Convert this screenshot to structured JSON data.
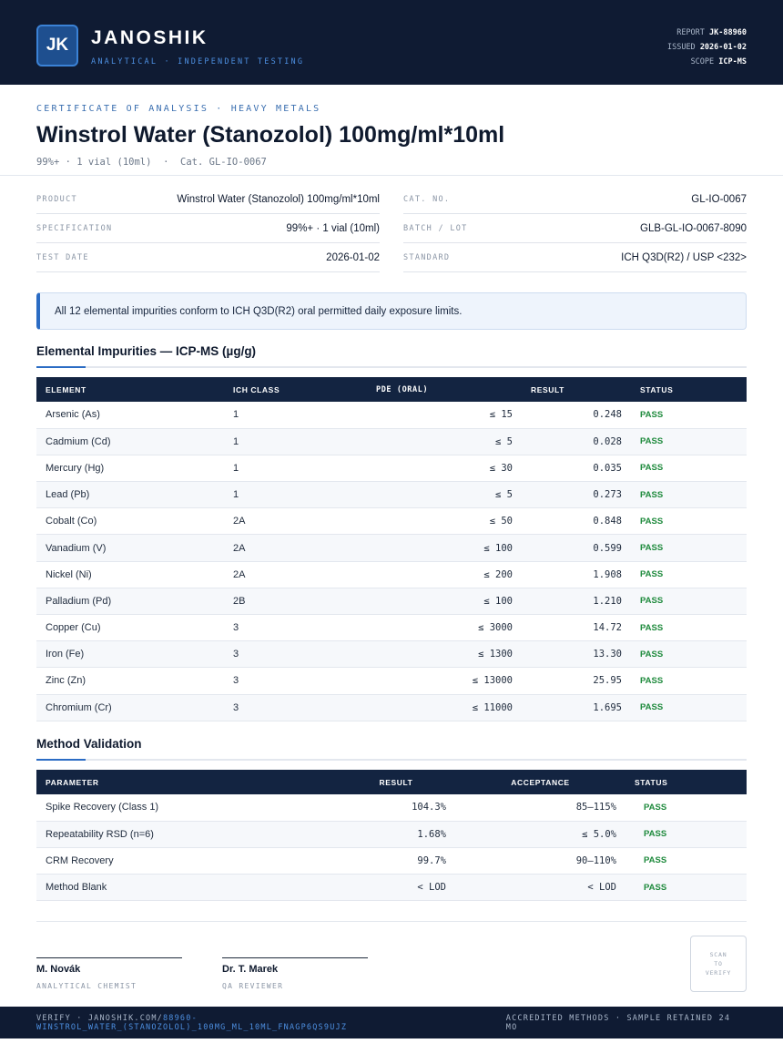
{
  "header": {
    "logo": "JK",
    "brand": "JANOSHIK",
    "tagline": "ANALYTICAL · INDEPENDENT TESTING",
    "report_label": "REPORT",
    "report_value": "JK-88960",
    "issued_label": "ISSUED",
    "issued_value": "2026-01-02",
    "scope_label": "SCOPE",
    "scope_value": "ICP-MS"
  },
  "doc": {
    "eyebrow": "CERTIFICATE OF ANALYSIS · HEAVY METALS",
    "title": "Winstrol Water (Stanozolol) 100mg/ml*10ml",
    "subtitle": "99%+ · 1 vial (10ml)  ·  Cat. GL-IO-0067"
  },
  "info_left": [
    {
      "label": "PRODUCT",
      "value": "Winstrol Water (Stanozolol) 100mg/ml*10ml"
    },
    {
      "label": "SPECIFICATION",
      "value": "99%+ · 1 vial (10ml)"
    },
    {
      "label": "TEST DATE",
      "value": "2026-01-02"
    }
  ],
  "info_right": [
    {
      "label": "CAT. NO.",
      "value": "GL-IO-0067"
    },
    {
      "label": "BATCH / LOT",
      "value": "GLB-GL-IO-0067-8090"
    },
    {
      "label": "STANDARD",
      "value": "ICH Q3D(R2) / USP <232>"
    }
  ],
  "banner": "All 12 elemental impurities conform to ICH Q3D(R2) oral permitted daily exposure limits.",
  "impurities": {
    "heading": "Elemental Impurities — ICP-MS (µg/g)",
    "columns": [
      "ELEMENT",
      "ICH CLASS",
      "PDE (ORAL)",
      "RESULT",
      "STATUS"
    ],
    "rows": [
      {
        "element": "Arsenic (As)",
        "class": "1",
        "pde": "≤ 15",
        "result": "0.248",
        "status": "PASS"
      },
      {
        "element": "Cadmium (Cd)",
        "class": "1",
        "pde": "≤ 5",
        "result": "0.028",
        "status": "PASS"
      },
      {
        "element": "Mercury (Hg)",
        "class": "1",
        "pde": "≤ 30",
        "result": "0.035",
        "status": "PASS"
      },
      {
        "element": "Lead (Pb)",
        "class": "1",
        "pde": "≤ 5",
        "result": "0.273",
        "status": "PASS"
      },
      {
        "element": "Cobalt (Co)",
        "class": "2A",
        "pde": "≤ 50",
        "result": "0.848",
        "status": "PASS"
      },
      {
        "element": "Vanadium (V)",
        "class": "2A",
        "pde": "≤ 100",
        "result": "0.599",
        "status": "PASS"
      },
      {
        "element": "Nickel (Ni)",
        "class": "2A",
        "pde": "≤ 200",
        "result": "1.908",
        "status": "PASS"
      },
      {
        "element": "Palladium (Pd)",
        "class": "2B",
        "pde": "≤ 100",
        "result": "1.210",
        "status": "PASS"
      },
      {
        "element": "Copper (Cu)",
        "class": "3",
        "pde": "≤ 3000",
        "result": "14.72",
        "status": "PASS"
      },
      {
        "element": "Iron (Fe)",
        "class": "3",
        "pde": "≤ 1300",
        "result": "13.30",
        "status": "PASS"
      },
      {
        "element": "Zinc (Zn)",
        "class": "3",
        "pde": "≤ 13000",
        "result": "25.95",
        "status": "PASS"
      },
      {
        "element": "Chromium (Cr)",
        "class": "3",
        "pde": "≤ 11000",
        "result": "1.695",
        "status": "PASS"
      }
    ]
  },
  "validation": {
    "heading": "Method Validation",
    "columns": [
      "PARAMETER",
      "RESULT",
      "ACCEPTANCE",
      "STATUS"
    ],
    "rows": [
      {
        "parameter": "Spike Recovery (Class 1)",
        "result": "104.3%",
        "acceptance": "85–115%",
        "status": "PASS"
      },
      {
        "parameter": "Repeatability RSD (n=6)",
        "result": "1.68%",
        "acceptance": "≤ 5.0%",
        "status": "PASS"
      },
      {
        "parameter": "CRM Recovery",
        "result": "99.7%",
        "acceptance": "90–110%",
        "status": "PASS"
      },
      {
        "parameter": "Method Blank",
        "result": "< LOD",
        "acceptance": "< LOD",
        "status": "PASS"
      }
    ]
  },
  "signatures": [
    {
      "name": "M. Novák",
      "role": "ANALYTICAL CHEMIST"
    },
    {
      "name": "Dr. T. Marek",
      "role": "QA REVIEWER"
    }
  ],
  "qr": {
    "line1": "SCAN",
    "line2": "TO",
    "line3": "VERIFY"
  },
  "footer": {
    "verify_prefix": "VERIFY · JANOSHIK.COM/",
    "verify_path": "88960-WINSTROL_WATER_(STANOZOLOL)_100MG_ML_10ML_FNAGP6QS9UJZ",
    "right": "ACCREDITED METHODS · SAMPLE RETAINED 24 MO"
  },
  "colors": {
    "navy": "#0f1b33",
    "accent": "#2b6cc4",
    "pass": "#1e8a3c"
  }
}
